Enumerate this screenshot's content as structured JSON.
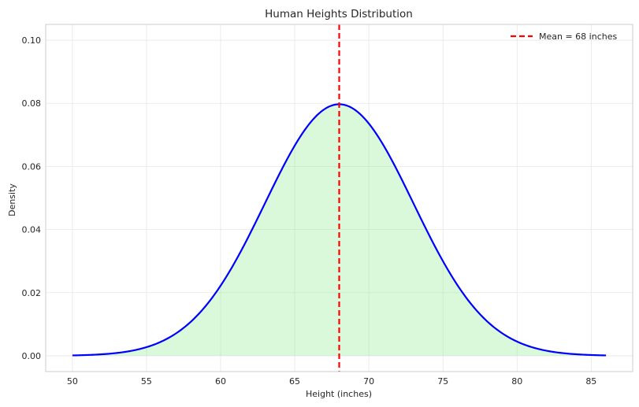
{
  "chart_data": {
    "type": "area",
    "title": "Human Heights Distribution",
    "xlabel": "Height (inches)",
    "ylabel": "Density",
    "xlim": [
      48.2,
      87.8
    ],
    "ylim": [
      -0.005,
      0.105
    ],
    "xticks": [
      50,
      55,
      60,
      65,
      70,
      75,
      80,
      85
    ],
    "yticks": [
      0.0,
      0.02,
      0.04,
      0.06,
      0.08,
      0.1
    ],
    "ytick_labels": [
      "0.00",
      "0.02",
      "0.04",
      "0.06",
      "0.08",
      "0.10"
    ],
    "grid": true,
    "legend_position": "top-right",
    "series": [
      {
        "type": "line",
        "color": "#0000ff",
        "fill_color": "#90ee90",
        "x": [
          50,
          52,
          54,
          56,
          57,
          58,
          59,
          60,
          61,
          62,
          63,
          64,
          65,
          66,
          67,
          68,
          69,
          70,
          71,
          72,
          73,
          74,
          75,
          76,
          77,
          78,
          79,
          80,
          82,
          84,
          86
        ],
        "y": [
          0.0,
          0.0003,
          0.0009,
          0.0028,
          0.0046,
          0.0073,
          0.0111,
          0.0163,
          0.023,
          0.0311,
          0.0403,
          0.0502,
          0.0601,
          0.0687,
          0.0757,
          0.0797,
          0.0757,
          0.0687,
          0.0601,
          0.0502,
          0.0403,
          0.0311,
          0.023,
          0.0163,
          0.0111,
          0.0073,
          0.0046,
          0.0028,
          0.0009,
          0.0003,
          0.0
        ]
      },
      {
        "type": "vline",
        "name": "Mean = 68 inches",
        "x": 68,
        "color": "#ff0000",
        "style": "dashed"
      }
    ]
  }
}
